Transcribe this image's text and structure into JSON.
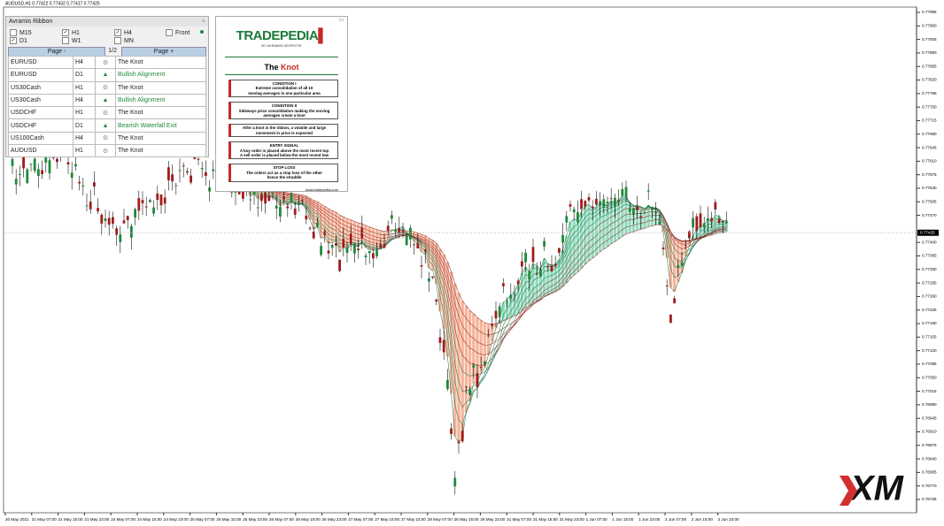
{
  "header": {
    "symbol_info": "AUDUSD,H1  0.77422 0.77432 0.77417 0.77425"
  },
  "ribbon_panel": {
    "title": "Avramis Ribbon",
    "timeframes": [
      {
        "label": "M15",
        "checked": false
      },
      {
        "label": "H1",
        "checked": true
      },
      {
        "label": "H4",
        "checked": true
      },
      {
        "label": "D1",
        "checked": true
      },
      {
        "label": "W1",
        "checked": false
      },
      {
        "label": "MN",
        "checked": false
      }
    ],
    "front": {
      "label": "Front",
      "checked": false
    },
    "nav": {
      "prev": "Page -",
      "page": "1/2",
      "next": "Page +"
    },
    "rows": [
      {
        "symbol": "EURUSD",
        "timeframe": "H4",
        "icon": "gear",
        "signal": "The Knot"
      },
      {
        "symbol": "EURUSD",
        "timeframe": "D1",
        "icon": "up-arrow",
        "signal": "Bullish Alignment"
      },
      {
        "symbol": "US30Cash",
        "timeframe": "H1",
        "icon": "gear",
        "signal": "The Knot"
      },
      {
        "symbol": "US30Cash",
        "timeframe": "H4",
        "icon": "up-arrow",
        "signal": "Bullish Alignment"
      },
      {
        "symbol": "USDCHF",
        "timeframe": "H1",
        "icon": "gear",
        "signal": "The Knot"
      },
      {
        "symbol": "USDCHF",
        "timeframe": "D1",
        "icon": "up-arrow",
        "signal": "Bearish Waterfall Exit"
      },
      {
        "symbol": "US100Cash",
        "timeframe": "H4",
        "icon": "gear",
        "signal": "The Knot"
      },
      {
        "symbol": "AUDUSD",
        "timeframe": "H1",
        "icon": "gear",
        "signal": "The Knot"
      }
    ]
  },
  "tradepedia": {
    "brand": "TRADEPEDIA",
    "byline": "BY AVRAMIS DESPOTIS",
    "title": [
      "The",
      "Knot"
    ],
    "boxes": [
      {
        "heading": "CONDITION I",
        "lines": [
          "Extreme consolidation of all 10",
          "moving averages in one particular area"
        ]
      },
      {
        "heading": "CONDITION II",
        "lines": [
          "Sideways price consolidation making the moving",
          "averages create a knot"
        ]
      },
      {
        "heading": null,
        "lines": [
          "After a knot in the ribbon, a volatile and large",
          "movement in price is expected"
        ]
      },
      {
        "heading": "ENTRY SIGNAL",
        "lines": [
          "A buy order is placed above the most recent top",
          "A sell order is placed below the most recent low"
        ]
      },
      {
        "heading": "STOP LOSS",
        "lines": [
          "The orders act as a stop loss of the other",
          "hence the straddle"
        ]
      }
    ],
    "url": "www.tradepedia.com"
  },
  "price_axis": {
    "labels": [
      "0.77995",
      "0.77960",
      "0.77925",
      "0.77890",
      "0.77855",
      "0.77820",
      "0.77785",
      "0.77750",
      "0.77715",
      "0.77680",
      "0.77645",
      "0.77610",
      "0.77575",
      "0.77540",
      "0.77505",
      "0.77470",
      "0.77400",
      "0.77365",
      "0.77330",
      "0.77295",
      "0.77260",
      "0.77225",
      "0.77190",
      "0.77155",
      "0.77120",
      "0.77085",
      "0.77050",
      "0.77015",
      "0.76980",
      "0.76945",
      "0.76910",
      "0.76875",
      "0.76840",
      "0.76805",
      "0.76770",
      "0.76735"
    ],
    "current": "0.77425"
  },
  "time_axis": {
    "labels": [
      "20 May 2021",
      "21 May 07:00",
      "21 May 15:00",
      "21 May 23:00",
      "24 May 07:00",
      "24 May 15:00",
      "24 May 23:00",
      "25 May 07:00",
      "25 May 15:00",
      "25 May 23:00",
      "26 May 07:00",
      "26 May 15:00",
      "26 May 23:00",
      "27 May 07:00",
      "27 May 15:00",
      "27 May 23:00",
      "28 May 07:00",
      "28 May 15:00",
      "28 May 23:00",
      "31 May 07:00",
      "31 May 15:00",
      "31 May 23:00",
      "1 Jun 07:00",
      "1 Jun 15:00",
      "1 Jun 23:00",
      "2 Jun 07:00",
      "2 Jun 15:00",
      "2 Jun 23:00"
    ]
  },
  "logo": "XM"
}
